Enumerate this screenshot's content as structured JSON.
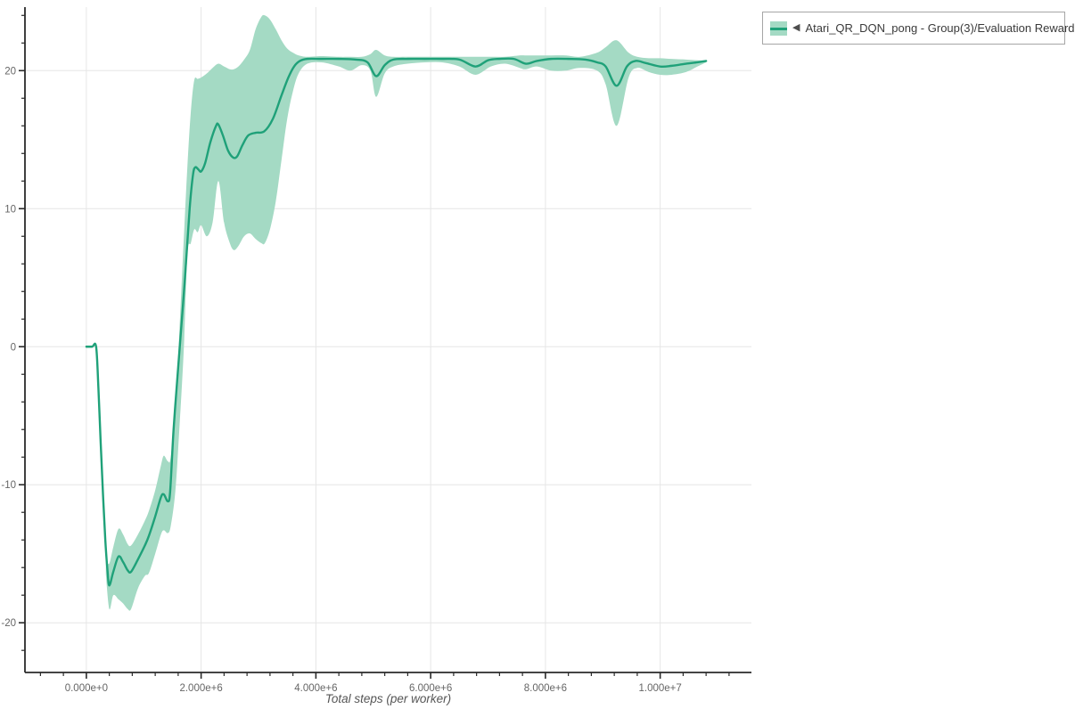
{
  "legend": {
    "collapse_icon": "◀",
    "series_label": "Atari_QR_DQN_pong - Group(3)/Evaluation Reward"
  },
  "colors": {
    "series_line": "#1fa179",
    "series_band": "#a4dac4",
    "grid": "#e6e6e6",
    "axis": "#2a2a2a",
    "tick_label": "#666666",
    "axis_title": "#555555",
    "legend_border": "#a6a6a6",
    "legend_text": "#3a3a3a"
  },
  "chart_data": {
    "type": "line",
    "title": "",
    "xlabel": "Total steps (per worker)",
    "ylabel": "",
    "legend_position": "top-right",
    "grid": true,
    "x_unit": "steps",
    "xlim_millions": [
      -1.07,
      11.59
    ],
    "ylim": [
      -23.6,
      24.6
    ],
    "x_ticks": {
      "values_millions": [
        0,
        2,
        4,
        6,
        8,
        10
      ],
      "labels": [
        "0.000e+0",
        "2.000e+6",
        "4.000e+6",
        "6.000e+6",
        "8.000e+6",
        "1.000e+7"
      ],
      "minor_step_millions": 0.4
    },
    "y_ticks": {
      "values": [
        -20,
        -10,
        0,
        10,
        20
      ],
      "labels": [
        "-20",
        "-10",
        "0",
        "10",
        "20"
      ],
      "minor_step": 2
    },
    "series": [
      {
        "name": "Atari_QR_DQN_pong - Group(3)/Evaluation Reward",
        "color": "#1fa179",
        "band_color": "#a4dac4",
        "x_millions": [
          0.0,
          0.1,
          0.17,
          0.21,
          0.25,
          0.29,
          0.33,
          0.37,
          0.4,
          0.47,
          0.56,
          0.64,
          0.72,
          0.78,
          0.9,
          1.02,
          1.09,
          1.2,
          1.3,
          1.35,
          1.42,
          1.46,
          1.52,
          1.6,
          1.71,
          1.8,
          1.86,
          1.9,
          1.95,
          2.0,
          2.07,
          2.16,
          2.26,
          2.3,
          2.38,
          2.47,
          2.56,
          2.63,
          2.72,
          2.82,
          2.95,
          3.1,
          3.25,
          3.4,
          3.52,
          3.62,
          3.72,
          3.85,
          4.1,
          4.4,
          4.7,
          4.9,
          5.05,
          5.2,
          5.35,
          5.6,
          5.9,
          6.2,
          6.5,
          6.78,
          7.0,
          7.2,
          7.45,
          7.66,
          7.85,
          8.1,
          8.4,
          8.7,
          8.9,
          9.05,
          9.24,
          9.42,
          9.57,
          9.75,
          10.0,
          10.2,
          10.45,
          10.65,
          10.8
        ],
        "y": [
          0,
          0,
          0,
          -3,
          -7,
          -10.7,
          -14,
          -16.3,
          -17.3,
          -16.3,
          -15.2,
          -15.6,
          -16.2,
          -16.3,
          -15.4,
          -14.4,
          -13.7,
          -12.3,
          -10.9,
          -10.7,
          -11.2,
          -10.5,
          -6,
          -1.5,
          4.5,
          10,
          12.5,
          13,
          12.85,
          12.7,
          13.3,
          14.8,
          16,
          16.1,
          15.3,
          14.2,
          13.7,
          13.8,
          14.6,
          15.3,
          15.5,
          15.6,
          16.5,
          18.2,
          19.5,
          20.3,
          20.7,
          20.85,
          20.85,
          20.85,
          20.8,
          20.6,
          19.6,
          20.4,
          20.8,
          20.85,
          20.85,
          20.85,
          20.8,
          20.3,
          20.75,
          20.85,
          20.85,
          20.5,
          20.7,
          20.85,
          20.85,
          20.8,
          20.6,
          20.3,
          18.9,
          20.3,
          20.7,
          20.55,
          20.3,
          20.35,
          20.5,
          20.6,
          20.7
        ],
        "band": {
          "x_millions": [
            0.34,
            0.4,
            0.47,
            0.56,
            0.64,
            0.72,
            0.78,
            0.9,
            1.02,
            1.09,
            1.2,
            1.3,
            1.35,
            1.42,
            1.47,
            1.55,
            1.62,
            1.7,
            1.76,
            1.82,
            1.88,
            1.94,
            2.0,
            2.1,
            2.2,
            2.3,
            2.4,
            2.5,
            2.57,
            2.65,
            2.75,
            2.85,
            2.95,
            3.05,
            3.11,
            3.2,
            3.3,
            3.4,
            3.5,
            3.6,
            3.7,
            3.85,
            4.1,
            4.4,
            4.6,
            4.8,
            4.95,
            5.05,
            5.2,
            5.35,
            5.6,
            5.9,
            6.2,
            6.5,
            6.78,
            7.05,
            7.3,
            7.55,
            7.66,
            7.85,
            8.1,
            8.35,
            8.6,
            8.9,
            9.05,
            9.24,
            9.45,
            9.6,
            9.8,
            10.0,
            10.2,
            10.45,
            10.65,
            10.8
          ],
          "lower": [
            -16.5,
            -19.0,
            -18.0,
            -18.3,
            -18.6,
            -19.0,
            -19.0,
            -17.5,
            -16.6,
            -16.4,
            -15.0,
            -13.6,
            -13.3,
            -13.5,
            -13.0,
            -10.5,
            -6.0,
            0.0,
            6.7,
            7.5,
            8.5,
            8.3,
            8.8,
            8.0,
            9.0,
            12.0,
            9.0,
            7.5,
            7.0,
            7.3,
            8.0,
            8.2,
            7.8,
            7.5,
            7.5,
            8.5,
            10.5,
            13.5,
            16.5,
            18.5,
            19.8,
            20.5,
            20.6,
            20.3,
            20.0,
            20.4,
            20.0,
            18.1,
            19.8,
            20.3,
            20.5,
            20.6,
            20.6,
            20.3,
            19.7,
            20.3,
            20.5,
            20.2,
            20.1,
            20.3,
            20.0,
            20.0,
            20.2,
            20.0,
            19.0,
            16.0,
            19.5,
            20.2,
            19.9,
            19.7,
            19.7,
            19.9,
            20.3,
            20.6
          ],
          "upper": [
            -15.5,
            -15.7,
            -14.5,
            -13.2,
            -13.6,
            -14.3,
            -14.4,
            -13.6,
            -12.6,
            -11.9,
            -10.4,
            -8.6,
            -7.9,
            -8.3,
            -8.0,
            -4.5,
            1.0,
            8.0,
            13.0,
            17.0,
            19.3,
            19.4,
            19.5,
            19.8,
            20.2,
            20.5,
            20.3,
            20.1,
            20.1,
            20.3,
            20.8,
            21.5,
            23.0,
            23.9,
            24.0,
            23.7,
            23.0,
            22.2,
            21.6,
            21.3,
            21.1,
            21.0,
            21.05,
            21.0,
            21.0,
            21.0,
            21.2,
            21.5,
            21.1,
            21.0,
            21.0,
            21.0,
            21.0,
            21.0,
            21.0,
            21.0,
            21.0,
            21.1,
            21.1,
            21.1,
            21.1,
            21.1,
            21.0,
            21.3,
            21.7,
            22.2,
            21.3,
            21.0,
            20.9,
            20.9,
            20.85,
            20.8,
            20.75,
            20.72
          ]
        }
      }
    ]
  }
}
